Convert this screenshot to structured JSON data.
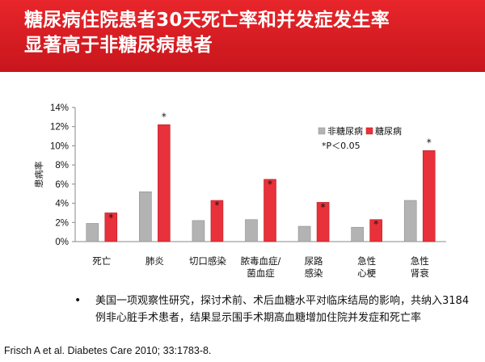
{
  "header": {
    "title_line1": "糖尿病住院患者30天死亡率和并发症发生率",
    "title_line2": "显著高于非糖尿病患者"
  },
  "colors": {
    "banner": "#d71f26",
    "non_diabetic": "#b3b3b3",
    "diabetic": "#e8313a"
  },
  "chart_data": {
    "type": "bar",
    "title": "",
    "xlabel": "",
    "ylabel": "患病率",
    "ylim": [
      0,
      14
    ],
    "ytick_labels": [
      "0%",
      "2%",
      "4%",
      "6%",
      "8%",
      "10%",
      "12%",
      "14%"
    ],
    "categories": [
      [
        "死亡"
      ],
      [
        "肺炎"
      ],
      [
        "切口感染"
      ],
      [
        "脓毒血症/",
        "菌血症"
      ],
      [
        "尿路",
        "感染"
      ],
      [
        "急性",
        "心梗"
      ],
      [
        "急性",
        "肾衰"
      ]
    ],
    "series": [
      {
        "name": "非糖尿病",
        "values": [
          1.9,
          5.2,
          2.2,
          2.3,
          1.6,
          1.5,
          4.3
        ]
      },
      {
        "name": "糖尿病",
        "values": [
          3.0,
          12.2,
          4.3,
          6.5,
          4.1,
          2.3,
          9.5
        ]
      }
    ],
    "significance": [
      "*",
      "*",
      "*",
      "*",
      "*",
      "*",
      "*"
    ],
    "legend_note": "*P＜0.05",
    "legend_position": "top-right",
    "grid": false
  },
  "notes": {
    "bullet_symbol": "•",
    "bullet_text": "美国一项观察性研究，探讨术前、术后血糖水平对临床结局的影响，共纳入3184例非心脏手术患者，结果显示围手术期高血糖增加住院并发症和死亡率"
  },
  "citation": "Frisch A et al. Diabetes Care 2010; 33:1783-8."
}
